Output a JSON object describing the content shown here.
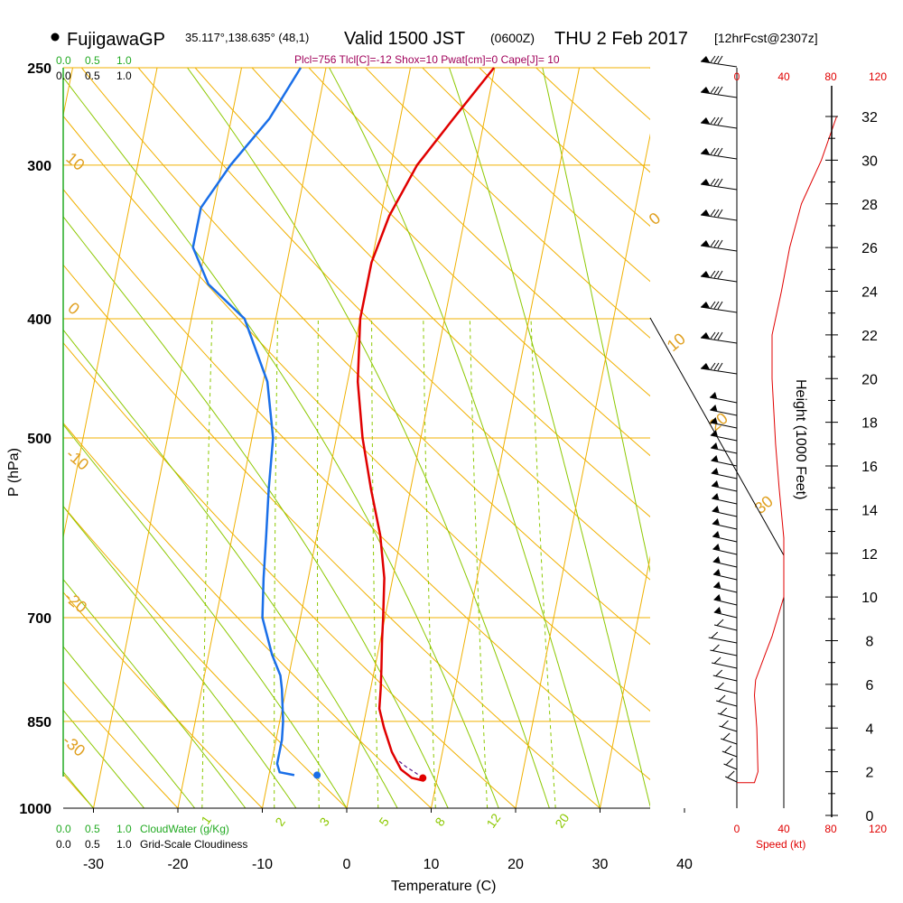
{
  "header": {
    "station": "FujigawaGP",
    "coords": "35.117°,138.635° (48,1)",
    "valid": "Valid 1500 JST",
    "zulu": "(0600Z)",
    "date": "THU 2 Feb 2017",
    "forecast": "[12hrFcst@2307z]",
    "indices": "Plcl=756 Tlcl[C]=-12 Shox=10 Pwat[cm]=0 Cape[J]= 10"
  },
  "colors": {
    "temperature": "#e00000",
    "dewpoint": "#1a6fe8",
    "isobar": "#f0b000",
    "dry_adiabat": "#f0b000",
    "moist_adiabat": "#8cc800",
    "cloudwater": "#22aa22",
    "speed": "#e00000"
  },
  "chart_data": {
    "type": "line",
    "title": "",
    "xlabel": "Temperature (C)",
    "ylabel": "P (hPa)",
    "right_axis_label": "Height (1000 Feet)",
    "x_ticks": [
      -30,
      -20,
      -10,
      0,
      10,
      20,
      30,
      40
    ],
    "pressure_ticks": [
      250,
      300,
      400,
      500,
      700,
      850,
      1000
    ],
    "height_ticks": [
      0,
      2,
      4,
      6,
      8,
      10,
      12,
      14,
      16,
      18,
      20,
      22,
      24,
      26,
      28,
      30,
      32
    ],
    "speed_ticks": [
      0,
      40,
      80,
      120
    ],
    "speed_label": "Speed (kt)",
    "cloudwater_ticks": [
      "0.0",
      "0.5",
      "1.0"
    ],
    "cloudwater_label": "CloudWater (g/Kg)",
    "cloudiness_ticks": [
      "0.0",
      "0.5",
      "1.0"
    ],
    "cloudiness_label": "Grid-Scale Cloudiness",
    "dry_adiabat_labels": [
      "10",
      "0",
      "-10",
      "-20",
      "-30"
    ],
    "dry_adiabat_labels_right": [
      "0",
      "10",
      "20",
      "30"
    ],
    "mixing_ratio_labels": [
      "1",
      "2",
      "3",
      "5",
      "8",
      "12",
      "20"
    ],
    "series": [
      {
        "name": "",
        "points": [
          [
            8.5,
            950
          ],
          [
            7,
            945
          ],
          [
            5.5,
            930
          ],
          [
            4,
            900
          ],
          [
            2.5,
            860
          ],
          [
            1.5,
            830
          ],
          [
            1.2,
            800
          ],
          [
            0.8,
            770
          ],
          [
            0.2,
            730
          ],
          [
            -0.2,
            700
          ],
          [
            -1,
            650
          ],
          [
            -2.5,
            600
          ],
          [
            -4.7,
            550
          ],
          [
            -6.9,
            500
          ],
          [
            -8.8,
            450
          ],
          [
            -10,
            400
          ],
          [
            -10,
            360
          ],
          [
            -9,
            330
          ],
          [
            -6.9,
            300
          ],
          [
            -3.7,
            275
          ],
          [
            -0.1,
            250
          ]
        ]
      },
      {
        "name": "",
        "points": [
          [
            -7,
            940
          ],
          [
            -8.8,
            935
          ],
          [
            -9.3,
            920
          ],
          [
            -9.3,
            880
          ],
          [
            -9.6,
            850
          ],
          [
            -10.5,
            800
          ],
          [
            -11,
            780
          ],
          [
            -12.5,
            750
          ],
          [
            -14.5,
            700
          ],
          [
            -15.3,
            650
          ],
          [
            -16,
            600
          ],
          [
            -16.8,
            550
          ],
          [
            -17.5,
            500
          ],
          [
            -19.5,
            450
          ],
          [
            -23.7,
            400
          ],
          [
            -28.8,
            375
          ],
          [
            -31.5,
            350
          ],
          [
            -31.5,
            325
          ],
          [
            -29,
            300
          ],
          [
            -25.5,
            275
          ],
          [
            -23,
            250
          ]
        ]
      }
    ],
    "dewpoint_marker": {
      "t": -4.3,
      "p": 940
    },
    "parcel_marker": {
      "t": 8.3,
      "p": 945
    },
    "wind_speed_profile": [
      [
        0,
        1.5
      ],
      [
        15,
        1.5
      ],
      [
        18,
        2
      ],
      [
        17,
        4
      ],
      [
        15,
        5.5
      ],
      [
        16,
        6.2
      ],
      [
        25,
        7.5
      ],
      [
        30,
        8.2
      ],
      [
        40,
        10
      ],
      [
        40,
        12.7
      ],
      [
        36,
        15
      ],
      [
        33,
        17
      ],
      [
        30,
        20
      ],
      [
        30,
        22
      ],
      [
        38,
        24
      ],
      [
        45,
        26
      ],
      [
        55,
        28
      ],
      [
        72,
        30
      ],
      [
        85,
        32
      ]
    ]
  }
}
